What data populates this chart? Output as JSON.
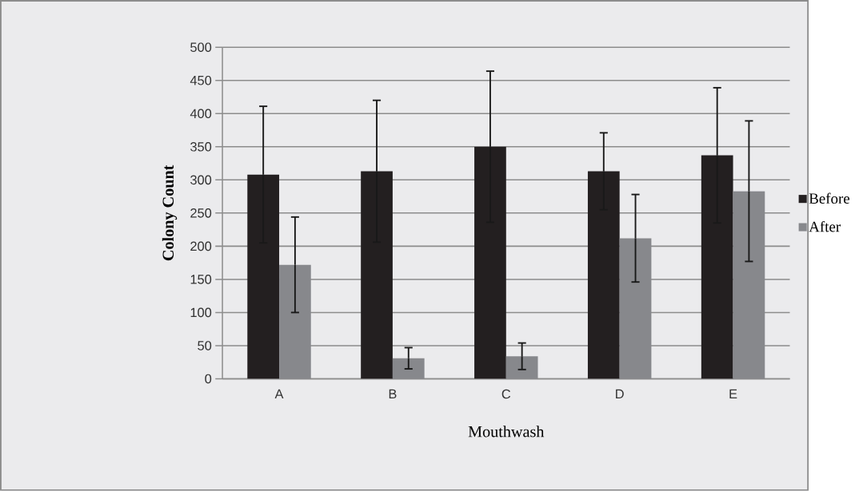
{
  "chart_data": {
    "type": "bar",
    "categories": [
      "A",
      "B",
      "C",
      "D",
      "E"
    ],
    "xlabel": "Mouthwash",
    "ylabel": "Colony Count",
    "series": [
      {
        "name": "Before",
        "color": "#231f20",
        "values": [
          308,
          313,
          350,
          313,
          337
        ],
        "errors": [
          103,
          107,
          114,
          58,
          102
        ]
      },
      {
        "name": "After",
        "color": "#87888c",
        "values": [
          172,
          31,
          34,
          212,
          283
        ],
        "errors": [
          72,
          16,
          20,
          66,
          106
        ]
      }
    ],
    "ylim": [
      0,
      500
    ],
    "yticks": [
      0,
      50,
      100,
      150,
      200,
      250,
      300,
      350,
      400,
      450,
      500
    ],
    "grid": "y",
    "legend": "right"
  }
}
